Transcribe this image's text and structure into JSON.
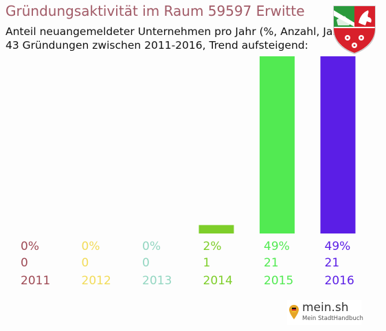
{
  "chart_data": {
    "type": "bar",
    "title": "Gründungsaktivität im Raum 59597 Erwitte",
    "subtitle_lines": [
      "Anteil neuangemeldeter Unternehmen pro Jahr (%, Anzahl, Jahr)",
      "43 Gründungen zwischen 2011-2016, Trend aufsteigend:"
    ],
    "categories": [
      "2011",
      "2012",
      "2013",
      "2014",
      "2015",
      "2016"
    ],
    "values": [
      0,
      0,
      0,
      1,
      21,
      21
    ],
    "percent_labels": [
      "0%",
      "0%",
      "0%",
      "2%",
      "49%",
      "49%"
    ],
    "count_labels": [
      "0",
      "0",
      "0",
      "1",
      "21",
      "21"
    ],
    "colors": [
      "#9e4a55",
      "#f2dc5a",
      "#93d6c1",
      "#7ece2a",
      "#52ea52",
      "#5b1ee6"
    ],
    "ylim": [
      0,
      21
    ],
    "grid": false,
    "legend": "none"
  },
  "branding": {
    "coat_of_arms": "nrw-coat-of-arms-icon",
    "logo_text": "mein.sh",
    "logo_tagline": "Mein StadtHandbuch"
  }
}
